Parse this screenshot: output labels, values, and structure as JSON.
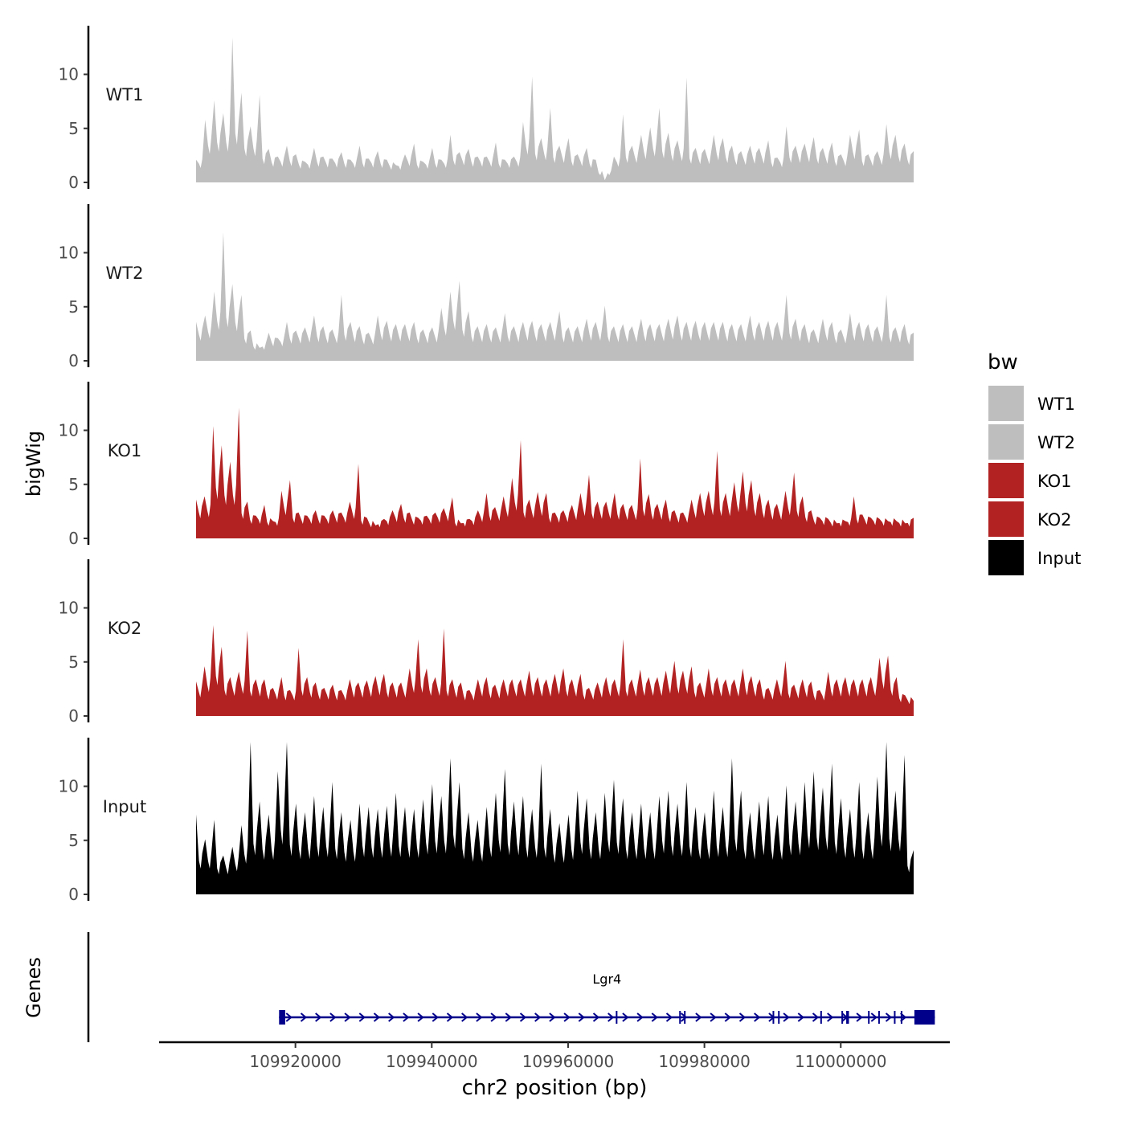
{
  "chart_data": {
    "type": "area",
    "title": "",
    "xlabel": "chr2 position (bp)",
    "ylabel_tracks": "bigWig",
    "ylabel_genes": "Genes",
    "chromosome": "chr2",
    "xlim": [
      109900000,
      110016000
    ],
    "data_range": [
      109915500,
      110013800
    ],
    "x_ticks": [
      109920000,
      109940000,
      109960000,
      109980000,
      110000000
    ],
    "x_tick_labels": [
      "109920000",
      "109940000",
      "109960000",
      "109980000",
      "110000000"
    ],
    "ylim": [
      0,
      14.5
    ],
    "y_ticks": [
      0,
      5,
      10
    ],
    "y_tick_labels": [
      "0",
      "5",
      "10"
    ],
    "legend": {
      "title": "bw",
      "position": "right",
      "entries": [
        {
          "label": "WT1",
          "color": "#bebebe"
        },
        {
          "label": "WT2",
          "color": "#bebebe"
        },
        {
          "label": "KO1",
          "color": "#b22222"
        },
        {
          "label": "KO2",
          "color": "#b22222"
        },
        {
          "label": "Input",
          "color": "#000000"
        }
      ]
    },
    "series": [
      {
        "name": "WT1",
        "color": "#bebebe",
        "values": [
          2.1,
          5.8,
          7.6,
          6.4,
          13.4,
          8.3,
          5.2,
          8.1,
          3.1,
          2.4,
          3.4,
          2.6,
          1.9,
          3.2,
          2.4,
          2.2,
          2.8,
          2.1,
          3.4,
          2.2,
          2.9,
          2.1,
          1.6,
          2.6,
          3.6,
          1.9,
          3.2,
          2.1,
          4.4,
          2.8,
          3.1,
          2.4,
          2.4,
          3.7,
          2.1,
          2.4,
          5.6,
          9.8,
          4.1,
          6.9,
          3.4,
          4.1,
          2.6,
          3.2,
          2.1,
          0.2,
          2.4,
          6.3,
          3.4,
          4.4,
          5.1,
          6.9,
          4.6,
          3.9,
          9.7,
          3.2,
          3.1,
          4.4,
          4.1,
          3.4,
          2.9,
          3.4,
          3.2,
          3.9,
          2.3,
          5.2,
          3.4,
          3.6,
          4.2,
          3.2,
          3.7,
          2.6,
          4.4,
          4.9,
          2.6,
          2.9,
          5.4,
          4.4,
          3.6,
          2.9
        ]
      },
      {
        "name": "WT2",
        "color": "#bebebe",
        "values": [
          3.6,
          4.2,
          6.4,
          11.9,
          7.1,
          6.1,
          2.8,
          1.2,
          2.6,
          2.1,
          3.6,
          2.8,
          3.1,
          4.2,
          3.2,
          2.9,
          6.1,
          3.6,
          3.2,
          2.6,
          4.2,
          3.7,
          3.4,
          3.4,
          3.6,
          2.9,
          3.1,
          4.9,
          6.4,
          7.4,
          4.6,
          3.2,
          3.4,
          3.1,
          4.4,
          3.2,
          3.6,
          3.7,
          3.4,
          3.6,
          4.6,
          3.1,
          3.2,
          3.9,
          3.6,
          5.1,
          3.2,
          3.4,
          3.2,
          3.9,
          3.4,
          3.4,
          3.9,
          4.2,
          3.6,
          3.7,
          3.6,
          3.6,
          3.6,
          3.4,
          3.4,
          4.2,
          3.6,
          3.7,
          3.6,
          6.1,
          3.9,
          3.4,
          2.9,
          3.9,
          3.6,
          2.9,
          4.4,
          3.6,
          3.4,
          3.2,
          6.1,
          3.1,
          3.4,
          2.6
        ]
      },
      {
        "name": "KO1",
        "color": "#b22222",
        "values": [
          3.6,
          3.9,
          10.4,
          8.6,
          7.1,
          12.1,
          3.4,
          2.1,
          3.1,
          1.6,
          4.4,
          5.4,
          2.4,
          2.1,
          2.6,
          2.1,
          2.6,
          2.4,
          3.4,
          6.9,
          1.9,
          1.2,
          1.8,
          2.6,
          3.2,
          2.4,
          1.9,
          2.1,
          2.4,
          2.8,
          3.8,
          1.4,
          1.8,
          2.6,
          4.2,
          2.9,
          3.9,
          5.6,
          9.1,
          3.6,
          4.3,
          4.2,
          2.4,
          2.6,
          3.1,
          4.2,
          5.9,
          3.4,
          3.4,
          4.2,
          3.2,
          3.1,
          7.4,
          4.1,
          3.2,
          3.6,
          2.6,
          2.4,
          3.6,
          4.2,
          4.4,
          8.1,
          4.2,
          5.2,
          6.2,
          5.4,
          4.2,
          3.6,
          3.2,
          4.4,
          6.1,
          3.9,
          2.6,
          1.9,
          1.8,
          1.4,
          1.6,
          3.9,
          2.2,
          1.9,
          1.8,
          1.6,
          1.6,
          1.4,
          1.9
        ]
      },
      {
        "name": "KO2",
        "color": "#b22222",
        "values": [
          3.2,
          4.6,
          8.4,
          6.4,
          3.6,
          4.1,
          7.9,
          3.4,
          3.4,
          2.6,
          3.6,
          2.4,
          6.3,
          3.6,
          3.1,
          2.6,
          2.9,
          2.4,
          3.4,
          3.1,
          3.3,
          3.7,
          3.9,
          3.1,
          3.1,
          4.4,
          7.1,
          4.4,
          3.6,
          8.1,
          3.4,
          3.1,
          2.4,
          3.4,
          3.6,
          2.9,
          3.4,
          3.4,
          3.4,
          4.2,
          3.6,
          3.4,
          3.9,
          4.4,
          3.4,
          3.9,
          2.6,
          3.1,
          3.6,
          3.4,
          7.1,
          3.4,
          4.3,
          3.6,
          3.6,
          4.2,
          5.1,
          4.2,
          4.6,
          3.1,
          4.4,
          3.6,
          3.4,
          3.4,
          4.4,
          3.7,
          3.4,
          2.6,
          3.4,
          5.1,
          2.9,
          3.4,
          3.2,
          2.4,
          4.1,
          3.4,
          3.6,
          3.4,
          3.4,
          3.6,
          5.4,
          5.6,
          3.6,
          1.9,
          1.4
        ]
      },
      {
        "name": "Input",
        "color": "#000000",
        "values": [
          7.4,
          5.1,
          6.9,
          3.6,
          4.4,
          6.4,
          14.1,
          8.6,
          7.4,
          11.4,
          14.1,
          8.4,
          7.6,
          9.1,
          8.1,
          10.4,
          7.6,
          6.9,
          8.4,
          8.1,
          7.9,
          8.2,
          9.4,
          8.1,
          7.9,
          8.8,
          10.2,
          9.1,
          12.6,
          10.4,
          7.6,
          6.9,
          8.1,
          9.4,
          11.6,
          8.6,
          9.1,
          7.9,
          12.1,
          7.9,
          6.6,
          7.4,
          9.6,
          8.9,
          7.6,
          9.4,
          10.6,
          8.9,
          7.6,
          8.4,
          7.6,
          9.1,
          9.6,
          8.4,
          10.4,
          8.1,
          7.6,
          9.6,
          8.1,
          12.6,
          9.6,
          7.6,
          8.6,
          9.1,
          7.4,
          10.1,
          8.6,
          10.4,
          11.4,
          9.9,
          12.1,
          8.9,
          7.9,
          10.4,
          7.6,
          10.9,
          14.1,
          9.6,
          12.9,
          4.1
        ]
      }
    ],
    "genes": [
      {
        "name": "Lgr4",
        "strand": "+",
        "start": 109917600,
        "end": 110013800,
        "exons": [
          [
            109917600,
            109918500
          ],
          [
            109967000,
            109967200
          ],
          [
            109976300,
            109976500
          ],
          [
            109977000,
            109977200
          ],
          [
            109990000,
            109990200
          ],
          [
            109990800,
            109991000
          ],
          [
            109997000,
            109997200
          ],
          [
            110000100,
            110000300
          ],
          [
            110000800,
            110001200
          ],
          [
            110004000,
            110004200
          ],
          [
            110005500,
            110005700
          ],
          [
            110007800,
            110008000
          ],
          [
            110008800,
            110009000
          ],
          [
            110010800,
            110013800
          ]
        ]
      }
    ]
  }
}
